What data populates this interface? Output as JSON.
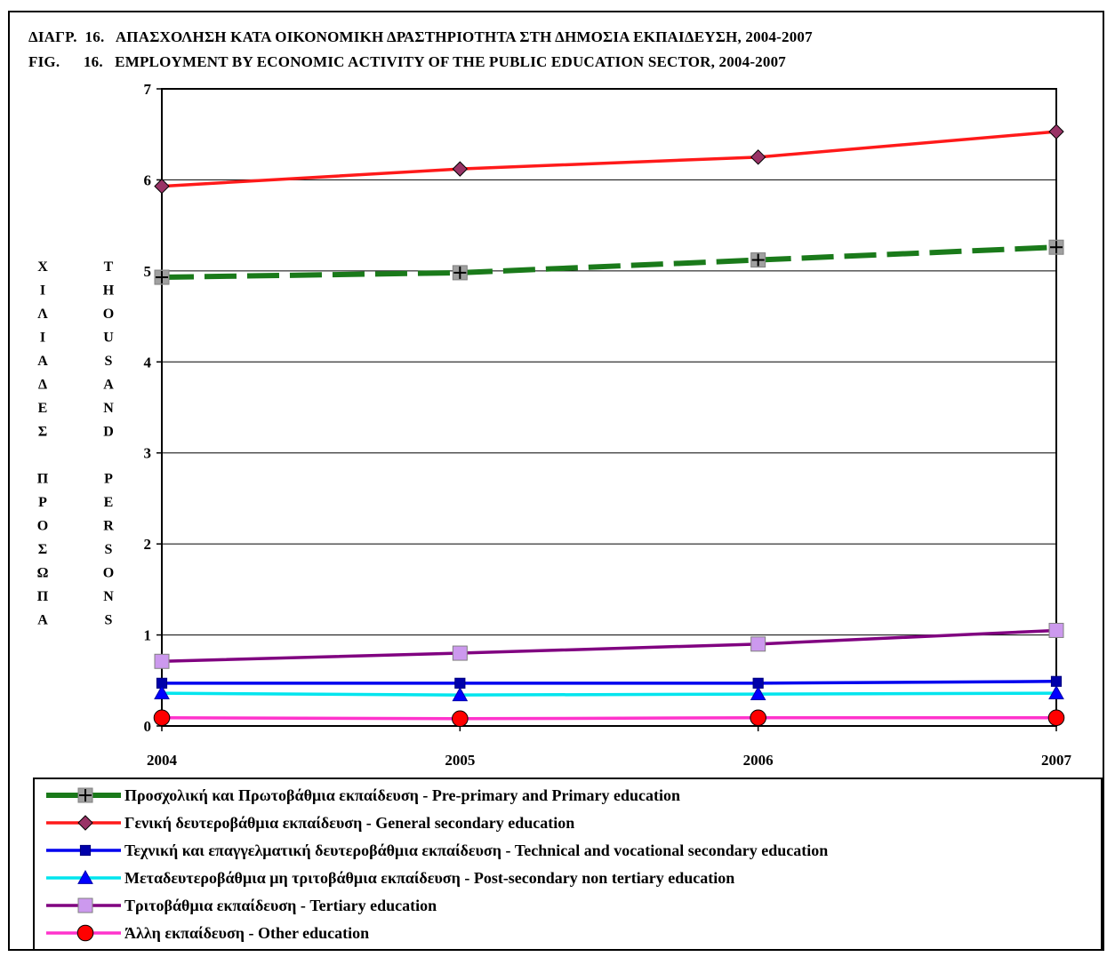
{
  "chart_data": {
    "type": "line",
    "title_el": "ΔΙΑΓΡ.  16.   ΑΠΑΣΧΟΛΗΣΗ ΚΑΤΑ ΟΙΚΟΝΟΜΙΚΗ ΔΡΑΣΤΗΡΙΟΤΗΤΑ ΣΤΗ ΔΗΜΟΣΙΑ ΕΚΠΑΙΔΕΥΣΗ, 2004-2007",
    "title_en": "FIG.      16.   EMPLOYMENT BY ECONOMIC ACTIVITY OF THE PUBLIC EDUCATION SECTOR, 2004-2007",
    "ylabel_el": "ΧΙΛΙΑΔΕΣ ΠΡΟΣΩΠΑ",
    "ylabel_en": "THOUSAND PERSONS",
    "x": [
      "2004",
      "2005",
      "2006",
      "2007"
    ],
    "ylim": [
      0,
      7
    ],
    "yticks": [
      0,
      1,
      2,
      3,
      4,
      5,
      6,
      7
    ],
    "grid": true,
    "legend_position": "bottom",
    "series": [
      {
        "name": "Προσχολική και Πρωτοβάθμια εκπαίδευση - Pre-primary and Primary education",
        "values": [
          4.93,
          4.98,
          5.12,
          5.26
        ],
        "color": "#1a7a1a",
        "marker": "plus-square",
        "dash": true
      },
      {
        "name": "Γενική δευτεροβάθμια εκπαίδευση - General secondary education",
        "values": [
          5.93,
          6.12,
          6.25,
          6.53
        ],
        "color": "#ff1a1a",
        "marker": "diamond",
        "dash": false
      },
      {
        "name": "Τεχνική και επαγγελματική δευτεροβάθμια εκπαίδευση - Technical and vocational secondary education",
        "values": [
          0.47,
          0.47,
          0.47,
          0.49
        ],
        "color": "#0000ee",
        "marker": "square",
        "dash": false
      },
      {
        "name": "Μεταδευτεροβάθμια μη τριτοβάθμια εκπαίδευση - Post-secondary non tertiary education",
        "values": [
          0.36,
          0.34,
          0.35,
          0.36
        ],
        "color": "#00e5ee",
        "marker": "triangle",
        "dash": false
      },
      {
        "name": "Τριτοβάθμια εκπαίδευση - Tertiary education",
        "values": [
          0.71,
          0.8,
          0.9,
          1.05
        ],
        "color": "#800080",
        "marker": "square-light",
        "dash": false
      },
      {
        "name": "Άλλη εκπαίδευση - Other education",
        "values": [
          0.09,
          0.08,
          0.09,
          0.09
        ],
        "color": "#ff33cc",
        "marker": "circle",
        "dash": false
      }
    ]
  }
}
